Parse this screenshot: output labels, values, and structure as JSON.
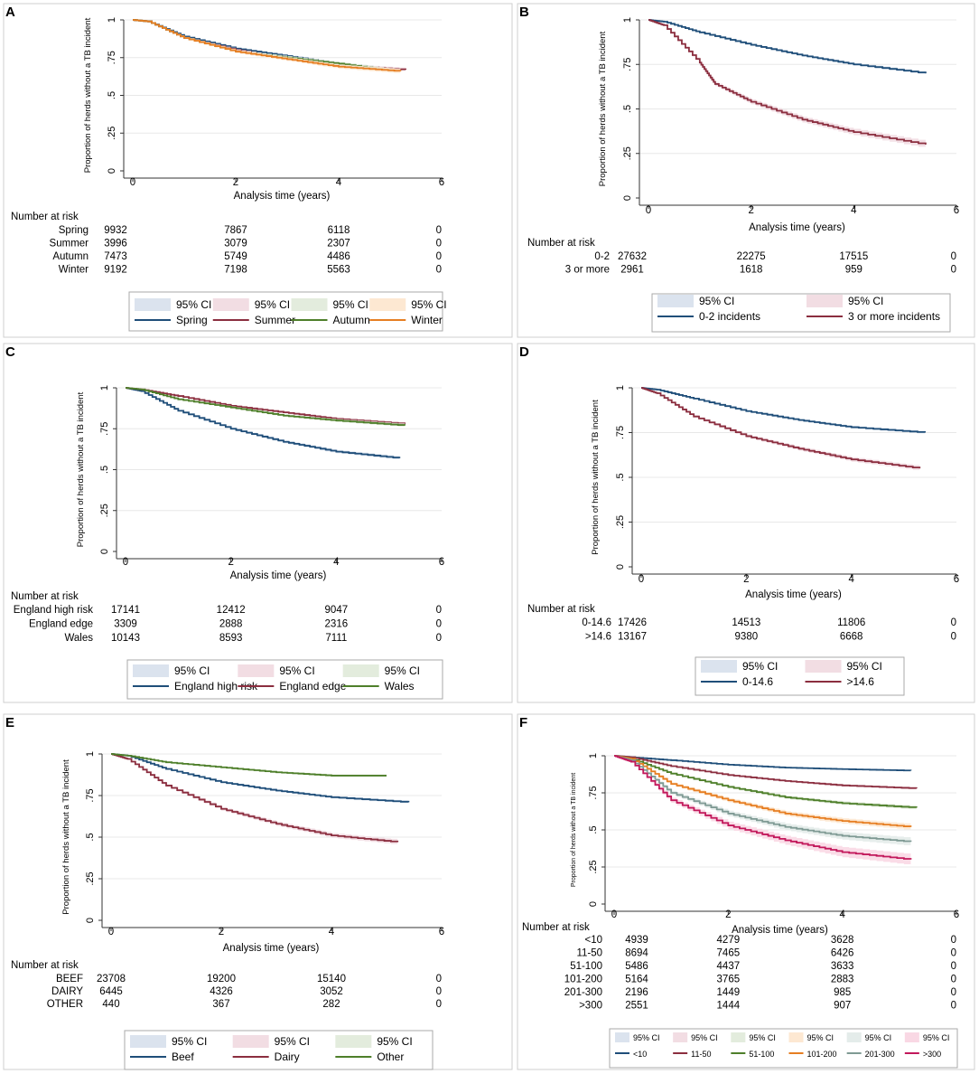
{
  "figure": {
    "colors": {
      "blue": "#1f4e79",
      "maroon": "#8b2e3f",
      "green": "#4e7f2a",
      "orange": "#e67e22",
      "gray": "#7f9a94",
      "red": "#c2185b",
      "ci_blue": "#dbe3ee",
      "ci_pink": "#f2dde3",
      "ci_green": "#e3ecdd",
      "ci_orange": "#fde8d2",
      "ci_gray": "#e4ecea",
      "ci_red": "#f9d8e4"
    }
  },
  "chart_data": [
    {
      "panel": "A",
      "type": "line",
      "title": "",
      "xlabel": "Analysis time (years)",
      "ylabel": "Proportion of herds without a TB incident",
      "xlim": [
        0,
        6
      ],
      "ylim": [
        0,
        1
      ],
      "xticks": [
        "0",
        "2",
        "4",
        "6"
      ],
      "yticks": [
        "0",
        ".25",
        ".5",
        ".75",
        "1"
      ],
      "legend_position": "bottom",
      "series": [
        {
          "name": "Spring",
          "color": "blue",
          "x": [
            0,
            0.3,
            1,
            2,
            3,
            4,
            5.1
          ],
          "y": [
            1,
            0.99,
            0.89,
            0.81,
            0.76,
            0.71,
            0.67
          ]
        },
        {
          "name": "Summer",
          "color": "maroon",
          "x": [
            0,
            0.3,
            1,
            2,
            3,
            4,
            5.3
          ],
          "y": [
            1,
            0.99,
            0.88,
            0.8,
            0.74,
            0.7,
            0.67
          ]
        },
        {
          "name": "Autumn",
          "color": "green",
          "x": [
            0,
            0.3,
            1,
            2,
            3,
            4,
            5.1
          ],
          "y": [
            1,
            0.99,
            0.88,
            0.79,
            0.75,
            0.71,
            0.66
          ]
        },
        {
          "name": "Winter",
          "color": "orange",
          "x": [
            0,
            0.3,
            1,
            2,
            3,
            4,
            5.2
          ],
          "y": [
            1,
            0.99,
            0.88,
            0.79,
            0.74,
            0.69,
            0.66
          ]
        }
      ],
      "legend": [
        {
          "label": "95% CI",
          "kind": "ci",
          "color": "ci_blue"
        },
        {
          "label": "95% CI",
          "kind": "ci",
          "color": "ci_pink"
        },
        {
          "label": "95% CI",
          "kind": "ci",
          "color": "ci_green"
        },
        {
          "label": "95% CI",
          "kind": "ci",
          "color": "ci_orange"
        },
        {
          "label": "Spring",
          "kind": "line",
          "color": "blue"
        },
        {
          "label": "Summer",
          "kind": "line",
          "color": "maroon"
        },
        {
          "label": "Autumn",
          "kind": "line",
          "color": "green"
        },
        {
          "label": "Winter",
          "kind": "line",
          "color": "orange"
        }
      ],
      "risk_table": {
        "header": "Number at risk",
        "rows": [
          {
            "label": "Spring",
            "values": [
              "9932",
              "7867",
              "6118",
              "0"
            ]
          },
          {
            "label": "Summer",
            "values": [
              "3996",
              "3079",
              "2307",
              "0"
            ]
          },
          {
            "label": "Autumn",
            "values": [
              "7473",
              "5749",
              "4486",
              "0"
            ]
          },
          {
            "label": "Winter",
            "values": [
              "9192",
              "7198",
              "5563",
              "0"
            ]
          }
        ]
      }
    },
    {
      "panel": "B",
      "type": "line",
      "title": "",
      "xlabel": "Analysis time (years)",
      "ylabel": "Proportion of herds without a TB incident",
      "xlim": [
        0,
        6
      ],
      "ylim": [
        0,
        1
      ],
      "xticks": [
        "0",
        "2",
        "4",
        "6"
      ],
      "yticks": [
        "0",
        ".25",
        ".5",
        ".75",
        "1"
      ],
      "legend_position": "bottom",
      "series": [
        {
          "name": "0-2 incidents",
          "color": "blue",
          "x": [
            0,
            0.3,
            1,
            2,
            3,
            4,
            5.4
          ],
          "y": [
            1,
            0.99,
            0.93,
            0.86,
            0.8,
            0.75,
            0.7
          ]
        },
        {
          "name": "3 or more incidents",
          "color": "maroon",
          "x": [
            0,
            0.3,
            1,
            1.3,
            2,
            3,
            4,
            5.4
          ],
          "y": [
            1,
            0.97,
            0.76,
            0.64,
            0.54,
            0.44,
            0.37,
            0.3
          ]
        }
      ],
      "legend": [
        {
          "label": "95% CI",
          "kind": "ci",
          "color": "ci_blue"
        },
        {
          "label": "95% CI",
          "kind": "ci",
          "color": "ci_pink"
        },
        {
          "label": "0-2 incidents",
          "kind": "line",
          "color": "blue"
        },
        {
          "label": "3 or more incidents",
          "kind": "line",
          "color": "maroon"
        }
      ],
      "risk_table": {
        "header": "Number at risk",
        "rows": [
          {
            "label": "0-2",
            "values": [
              "27632",
              "22275",
              "17515",
              "0"
            ]
          },
          {
            "label": "3 or more",
            "values": [
              "2961",
              "1618",
              "959",
              "0"
            ]
          }
        ]
      }
    },
    {
      "panel": "C",
      "type": "line",
      "title": "",
      "xlabel": "Analysis time (years)",
      "ylabel": "Proportion of herds without a TB incident",
      "xlim": [
        0,
        6
      ],
      "ylim": [
        0,
        1
      ],
      "xticks": [
        "0",
        "2",
        "4",
        "6"
      ],
      "yticks": [
        "0",
        ".25",
        ".5",
        ".75",
        "1"
      ],
      "legend_position": "bottom",
      "series": [
        {
          "name": "England high risk",
          "color": "blue",
          "x": [
            0,
            0.3,
            1,
            2,
            3,
            4,
            5.2
          ],
          "y": [
            1,
            0.98,
            0.86,
            0.75,
            0.67,
            0.61,
            0.57
          ]
        },
        {
          "name": "England edge",
          "color": "maroon",
          "x": [
            0,
            0.3,
            1,
            2,
            3,
            4,
            5.3
          ],
          "y": [
            1,
            0.99,
            0.95,
            0.89,
            0.85,
            0.81,
            0.78
          ]
        },
        {
          "name": "Wales",
          "color": "green",
          "x": [
            0,
            0.3,
            1,
            2,
            3,
            4,
            5.3
          ],
          "y": [
            1,
            0.99,
            0.93,
            0.88,
            0.83,
            0.8,
            0.77
          ]
        }
      ],
      "legend": [
        {
          "label": "95% CI",
          "kind": "ci",
          "color": "ci_blue"
        },
        {
          "label": "95% CI",
          "kind": "ci",
          "color": "ci_pink"
        },
        {
          "label": "95% CI",
          "kind": "ci",
          "color": "ci_green"
        },
        {
          "label": "England high risk",
          "kind": "line",
          "color": "blue"
        },
        {
          "label": "England edge",
          "kind": "line",
          "color": "maroon"
        },
        {
          "label": "Wales",
          "kind": "line",
          "color": "green"
        }
      ],
      "risk_table": {
        "header": "Number at risk",
        "rows": [
          {
            "label": "England high risk",
            "values": [
              "17141",
              "12412",
              "9047",
              "0"
            ]
          },
          {
            "label": "England edge",
            "values": [
              "3309",
              "2888",
              "2316",
              "0"
            ]
          },
          {
            "label": "Wales",
            "values": [
              "10143",
              "8593",
              "7111",
              "0"
            ]
          }
        ]
      }
    },
    {
      "panel": "D",
      "type": "line",
      "title": "",
      "xlabel": "Analysis time (years)",
      "ylabel": "Proportion of herds without a TB incident",
      "xlim": [
        0,
        6
      ],
      "ylim": [
        0,
        1
      ],
      "xticks": [
        "0",
        "2",
        "4",
        "6"
      ],
      "yticks": [
        "0",
        ".25",
        ".5",
        ".75",
        "1"
      ],
      "legend_position": "bottom",
      "series": [
        {
          "name": "0-14.6",
          "color": "blue",
          "x": [
            0,
            0.3,
            1,
            2,
            3,
            4,
            5.4
          ],
          "y": [
            1,
            0.99,
            0.94,
            0.87,
            0.82,
            0.78,
            0.75
          ]
        },
        {
          "name": ">14.6",
          "color": "maroon",
          "x": [
            0,
            0.3,
            1,
            2,
            3,
            4,
            5.3
          ],
          "y": [
            1,
            0.97,
            0.84,
            0.73,
            0.66,
            0.6,
            0.55
          ]
        }
      ],
      "legend": [
        {
          "label": "95% CI",
          "kind": "ci",
          "color": "ci_blue"
        },
        {
          "label": "95% CI",
          "kind": "ci",
          "color": "ci_pink"
        },
        {
          "label": "0-14.6",
          "kind": "line",
          "color": "blue"
        },
        {
          "label": ">14.6",
          "kind": "line",
          "color": "maroon"
        }
      ],
      "risk_table": {
        "header": "Number at risk",
        "rows": [
          {
            "label": "0-14.6",
            "values": [
              "17426",
              "14513",
              "11806",
              "0"
            ]
          },
          {
            "label": ">14.6",
            "values": [
              "13167",
              "9380",
              "6668",
              "0"
            ]
          }
        ]
      }
    },
    {
      "panel": "E",
      "type": "line",
      "title": "",
      "xlabel": "Analysis time (years)",
      "ylabel": "Proportion of herds without a TB incident",
      "xlim": [
        0,
        6
      ],
      "ylim": [
        0,
        1
      ],
      "xticks": [
        "0",
        "2",
        "4",
        "6"
      ],
      "yticks": [
        "0",
        ".25",
        ".5",
        ".75",
        "1"
      ],
      "legend_position": "bottom",
      "series": [
        {
          "name": "Beef",
          "color": "blue",
          "x": [
            0,
            0.3,
            1,
            2,
            3,
            4,
            5.4
          ],
          "y": [
            1,
            0.99,
            0.91,
            0.83,
            0.78,
            0.74,
            0.71
          ]
        },
        {
          "name": "Dairy",
          "color": "maroon",
          "x": [
            0,
            0.3,
            1,
            2,
            3,
            4,
            5.2
          ],
          "y": [
            1,
            0.97,
            0.81,
            0.67,
            0.58,
            0.51,
            0.47
          ]
        },
        {
          "name": "Other",
          "color": "green",
          "x": [
            0,
            0.3,
            1,
            2,
            3,
            4,
            5
          ],
          "y": [
            1,
            0.99,
            0.95,
            0.92,
            0.89,
            0.87,
            0.87
          ]
        }
      ],
      "legend": [
        {
          "label": "95% CI",
          "kind": "ci",
          "color": "ci_blue"
        },
        {
          "label": "95% CI",
          "kind": "ci",
          "color": "ci_pink"
        },
        {
          "label": "95% CI",
          "kind": "ci",
          "color": "ci_green"
        },
        {
          "label": "Beef",
          "kind": "line",
          "color": "blue"
        },
        {
          "label": "Dairy",
          "kind": "line",
          "color": "maroon"
        },
        {
          "label": "Other",
          "kind": "line",
          "color": "green"
        }
      ],
      "risk_table": {
        "header": "Number at risk",
        "rows": [
          {
            "label": "BEEF",
            "values": [
              "23708",
              "19200",
              "15140",
              "0"
            ]
          },
          {
            "label": "DAIRY",
            "values": [
              "6445",
              "4326",
              "3052",
              "0"
            ]
          },
          {
            "label": "OTHER",
            "values": [
              "440",
              "367",
              "282",
              "0"
            ]
          }
        ]
      }
    },
    {
      "panel": "F",
      "type": "line",
      "title": "",
      "xlabel": "Analysis time (years)",
      "ylabel": "Proportion of herds without a TB incident",
      "xlim": [
        0,
        6
      ],
      "ylim": [
        0,
        1
      ],
      "xticks": [
        "0",
        "2",
        "4",
        "6"
      ],
      "yticks": [
        "0",
        ".25",
        ".5",
        ".75",
        "1"
      ],
      "legend_position": "bottom",
      "series": [
        {
          "name": "<10",
          "color": "blue",
          "x": [
            0,
            0.3,
            1,
            2,
            3,
            4,
            5.2
          ],
          "y": [
            1,
            0.99,
            0.97,
            0.94,
            0.92,
            0.91,
            0.9
          ]
        },
        {
          "name": "11-50",
          "color": "maroon",
          "x": [
            0,
            0.3,
            1,
            2,
            3,
            4,
            5.3
          ],
          "y": [
            1,
            0.99,
            0.93,
            0.87,
            0.83,
            0.8,
            0.78
          ]
        },
        {
          "name": "51-100",
          "color": "green",
          "x": [
            0,
            0.3,
            1,
            2,
            3,
            4,
            5.3
          ],
          "y": [
            1,
            0.98,
            0.88,
            0.79,
            0.72,
            0.68,
            0.65
          ]
        },
        {
          "name": "101-200",
          "color": "orange",
          "x": [
            0,
            0.3,
            1,
            2,
            3,
            4,
            5.2
          ],
          "y": [
            1,
            0.98,
            0.81,
            0.7,
            0.61,
            0.56,
            0.52
          ]
        },
        {
          "name": "201-300",
          "color": "gray",
          "x": [
            0,
            0.3,
            1,
            2,
            3,
            4,
            5.2
          ],
          "y": [
            1,
            0.97,
            0.75,
            0.61,
            0.52,
            0.46,
            0.42
          ]
        },
        {
          "name": ">300",
          "color": "red",
          "x": [
            0,
            0.3,
            1,
            2,
            3,
            4,
            5.2
          ],
          "y": [
            1,
            0.96,
            0.7,
            0.53,
            0.43,
            0.35,
            0.3
          ]
        }
      ],
      "legend": [
        {
          "label": "95% CI",
          "kind": "ci",
          "color": "ci_blue"
        },
        {
          "label": "95% CI",
          "kind": "ci",
          "color": "ci_pink"
        },
        {
          "label": "95% CI",
          "kind": "ci",
          "color": "ci_green"
        },
        {
          "label": "95% CI",
          "kind": "ci",
          "color": "ci_orange"
        },
        {
          "label": "95% CI",
          "kind": "ci",
          "color": "ci_gray"
        },
        {
          "label": "95% CI",
          "kind": "ci",
          "color": "ci_red"
        },
        {
          "label": "<10",
          "kind": "line",
          "color": "blue"
        },
        {
          "label": "11-50",
          "kind": "line",
          "color": "maroon"
        },
        {
          "label": "51-100",
          "kind": "line",
          "color": "green"
        },
        {
          "label": "101-200",
          "kind": "line",
          "color": "orange"
        },
        {
          "label": "201-300",
          "kind": "line",
          "color": "gray"
        },
        {
          "label": ">300",
          "kind": "line",
          "color": "red"
        }
      ],
      "risk_table": {
        "header": "Number at risk",
        "rows": [
          {
            "label": "<10",
            "values": [
              "4939",
              "4279",
              "3628",
              "0"
            ]
          },
          {
            "label": "11-50",
            "values": [
              "8694",
              "7465",
              "6426",
              "0"
            ]
          },
          {
            "label": "51-100",
            "values": [
              "5486",
              "4437",
              "3633",
              "0"
            ]
          },
          {
            "label": "101-200",
            "values": [
              "5164",
              "3765",
              "2883",
              "0"
            ]
          },
          {
            "label": "201-300",
            "values": [
              "2196",
              "1449",
              "985",
              "0"
            ]
          },
          {
            "label": ">300",
            "values": [
              "2551",
              "1444",
              "907",
              "0"
            ]
          }
        ]
      }
    }
  ]
}
